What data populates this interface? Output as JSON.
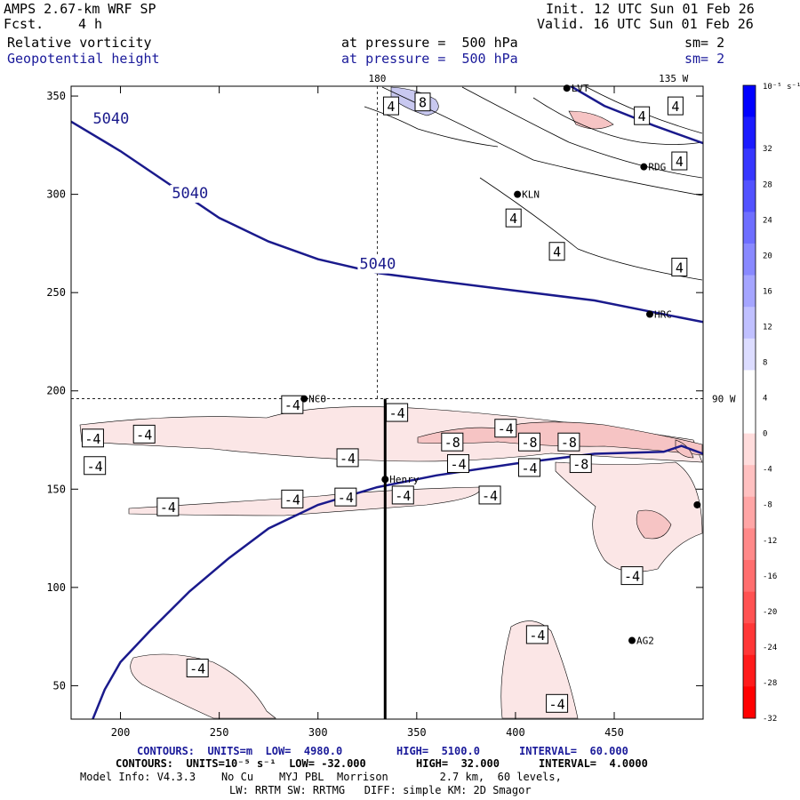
{
  "header": {
    "model": "AMPS 2.67-km WRF SP",
    "fcst_label": "Fcst.",
    "fcst_value": "4 h",
    "init": "Init. 12 UTC Sun 01 Feb 26",
    "valid": "Valid. 16 UTC Sun 01 Feb 26",
    "field1": "Relative vorticity",
    "field2": "Geopotential height",
    "press1": "at pressure =  500 hPa",
    "press2": "at pressure =  500 hPa",
    "sm1": "sm= 2",
    "sm2": "sm= 2"
  },
  "colors": {
    "height_line": "#1a1a8c",
    "pos_fill": "#c8c8f0",
    "neg_fill_light": "#fbe6e6",
    "neg_fill_med": "#f6c4c4"
  },
  "chart_data": {
    "type": "contour-map",
    "title": "Relative vorticity / Geopotential height at 500 hPa",
    "xlim": [
      175,
      495
    ],
    "ylim": [
      33,
      355
    ],
    "x_ticks": [
      200,
      250,
      300,
      350,
      400,
      450
    ],
    "y_ticks": [
      50,
      100,
      150,
      200,
      250,
      300,
      350
    ],
    "top_labels": [
      {
        "x": 330,
        "text": "180"
      },
      {
        "x": 480,
        "text": "135 W"
      }
    ],
    "right_labels": [
      {
        "y": 196,
        "text": "90 W"
      }
    ],
    "ref_lines": {
      "vertical_x": 330,
      "horizontal_y": 196
    },
    "cross_section": {
      "x": 334,
      "y_from": 33,
      "y_to": 196
    },
    "height_contours": [
      {
        "value": "5040",
        "points": [
          [
            175,
            337
          ],
          [
            200,
            322
          ],
          [
            225,
            305
          ],
          [
            250,
            288
          ],
          [
            275,
            276
          ],
          [
            300,
            267
          ],
          [
            330,
            260
          ],
          [
            360,
            256
          ],
          [
            400,
            251
          ],
          [
            440,
            246
          ],
          [
            470,
            240
          ],
          [
            495,
            235
          ]
        ]
      },
      {
        "value": "5040",
        "points": [
          [
            186,
            33
          ],
          [
            192,
            48
          ],
          [
            200,
            62
          ],
          [
            215,
            78
          ],
          [
            235,
            98
          ],
          [
            255,
            115
          ],
          [
            275,
            130
          ],
          [
            300,
            142
          ],
          [
            330,
            151
          ],
          [
            360,
            157
          ],
          [
            400,
            163
          ],
          [
            440,
            168
          ],
          [
            475,
            169
          ],
          [
            484,
            172
          ],
          [
            495,
            168
          ]
        ]
      },
      {
        "value": "5040",
        "points": [
          [
            428,
            355
          ],
          [
            445,
            345
          ],
          [
            470,
            335
          ],
          [
            495,
            326
          ]
        ]
      }
    ],
    "height_labels": [
      {
        "x": 186,
        "y": 336,
        "text": "5040"
      },
      {
        "x": 226,
        "y": 298,
        "text": "5040"
      },
      {
        "x": 321,
        "y": 262,
        "text": "5040"
      }
    ],
    "vorticity_labels": [
      {
        "x": 337,
        "y": 345,
        "text": "4"
      },
      {
        "x": 353,
        "y": 347,
        "text": "8"
      },
      {
        "x": 464,
        "y": 340,
        "text": "4"
      },
      {
        "x": 481,
        "y": 345,
        "text": "4"
      },
      {
        "x": 483,
        "y": 317,
        "text": "4"
      },
      {
        "x": 399,
        "y": 288,
        "text": "4"
      },
      {
        "x": 421,
        "y": 271,
        "text": "4"
      },
      {
        "x": 483,
        "y": 263,
        "text": "4"
      },
      {
        "x": 186,
        "y": 176,
        "text": "-4"
      },
      {
        "x": 187,
        "y": 162,
        "text": "-4"
      },
      {
        "x": 212,
        "y": 178,
        "text": "-4"
      },
      {
        "x": 287,
        "y": 193,
        "text": "-4"
      },
      {
        "x": 340,
        "y": 189,
        "text": "-4"
      },
      {
        "x": 395,
        "y": 181,
        "text": "-4"
      },
      {
        "x": 368,
        "y": 174,
        "text": "-8"
      },
      {
        "x": 407,
        "y": 174,
        "text": "-8"
      },
      {
        "x": 427,
        "y": 174,
        "text": "-8"
      },
      {
        "x": 433,
        "y": 163,
        "text": "-8"
      },
      {
        "x": 315,
        "y": 166,
        "text": "-4"
      },
      {
        "x": 371,
        "y": 163,
        "text": "-4"
      },
      {
        "x": 407,
        "y": 161,
        "text": "-4"
      },
      {
        "x": 287,
        "y": 145,
        "text": "-4"
      },
      {
        "x": 314,
        "y": 146,
        "text": "-4"
      },
      {
        "x": 343,
        "y": 147,
        "text": "-4"
      },
      {
        "x": 387,
        "y": 147,
        "text": "-4"
      },
      {
        "x": 224,
        "y": 141,
        "text": "-4"
      },
      {
        "x": 459,
        "y": 106,
        "text": "-4"
      },
      {
        "x": 411,
        "y": 76,
        "text": "-4"
      },
      {
        "x": 239,
        "y": 59,
        "text": "-4"
      },
      {
        "x": 421,
        "y": 41,
        "text": "-4"
      }
    ],
    "stations": [
      {
        "x": 426,
        "y": 354,
        "text": "LVT"
      },
      {
        "x": 465,
        "y": 314,
        "text": "RDG"
      },
      {
        "x": 401,
        "y": 300,
        "text": "KLN"
      },
      {
        "x": 468,
        "y": 239,
        "text": "HRC"
      },
      {
        "x": 293,
        "y": 196,
        "text": "NCO"
      },
      {
        "x": 334,
        "y": 155,
        "text": "Henry"
      },
      {
        "x": 492,
        "y": 142,
        "text": ""
      },
      {
        "x": 459,
        "y": 73,
        "text": "AG2"
      }
    ],
    "colorbar": {
      "unit": "10⁻⁵ s⁻¹",
      "ticks": [
        "32",
        "28",
        "24",
        "20",
        "16",
        "12",
        "8",
        "4",
        "0",
        "-4",
        "-8",
        "-12",
        "-16",
        "-20",
        "-24",
        "-28",
        "-32"
      ],
      "colors": [
        "#0000ff",
        "#1b1bff",
        "#3737ff",
        "#5252ff",
        "#6e6eff",
        "#8989ff",
        "#a5a5ff",
        "#c0c0ff",
        "#dcdcff",
        "#ffffff",
        "#ffffff",
        "#ffdcdc",
        "#ffc0c0",
        "#ffa5a5",
        "#ff8989",
        "#ff6e6e",
        "#ff5252",
        "#ff3737",
        "#ff1b1b",
        "#ff0000"
      ]
    }
  },
  "footer": {
    "contours1_label": "CONTOURS:  UNITS=m  LOW=  4980.0",
    "contours1_high": "HIGH=  5100.0",
    "contours1_interval": "INTERVAL=  60.000",
    "contours2_label": "CONTOURS:  UNITS=10⁻⁵ s⁻¹  LOW= -32.000",
    "contours2_high": "HIGH=  32.000",
    "contours2_interval": "INTERVAL=  4.0000",
    "model_info": "Model Info: V4.3.3    No Cu    MYJ PBL  Morrison        2.7 km,  60 levels,",
    "model_info2": "LW: RRTM SW: RRTMG   DIFF: simple KM: 2D Smagor"
  }
}
